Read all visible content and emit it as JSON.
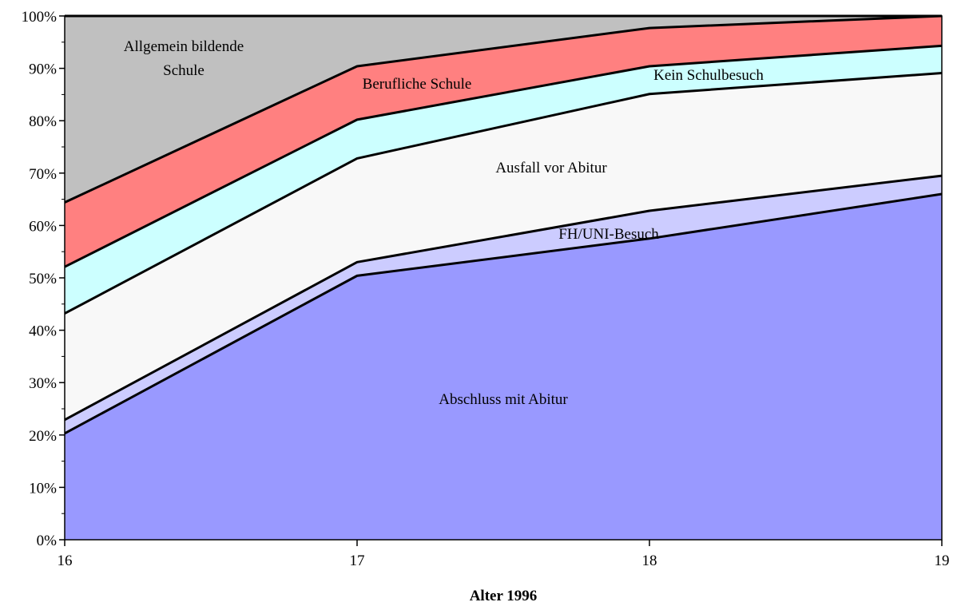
{
  "chart_data": {
    "type": "area",
    "stacked": true,
    "x": [
      16,
      17,
      18,
      19
    ],
    "xlabel": "Alter 1996",
    "ylabel": "",
    "ylim": [
      0,
      100
    ],
    "y_ticks": [
      "0%",
      "10%",
      "20%",
      "30%",
      "40%",
      "50%",
      "60%",
      "70%",
      "80%",
      "90%",
      "100%"
    ],
    "x_ticks": [
      "16",
      "17",
      "18",
      "19"
    ],
    "grid": false,
    "legend": "none",
    "series": [
      {
        "name": "Abschluss mit Abitur",
        "values": [
          20.3,
          50.4,
          57.5,
          66.0
        ],
        "color": "#9999ff"
      },
      {
        "name": "FH/UNI-Besuch",
        "values": [
          2.6,
          2.6,
          5.3,
          3.5
        ],
        "color": "#ccccff"
      },
      {
        "name": "Ausfall vor Abitur",
        "values": [
          20.3,
          19.8,
          22.3,
          19.6
        ],
        "color": "#f8f8f8"
      },
      {
        "name": "Kein Schulbesuch",
        "values": [
          8.9,
          7.4,
          5.3,
          5.2
        ],
        "color": "#ccffff"
      },
      {
        "name": "Berufliche Schule",
        "values": [
          12.3,
          10.2,
          7.3,
          5.7
        ],
        "color": "#ff8080"
      },
      {
        "name": "Allgemein bildende Schule",
        "values": [
          35.6,
          9.6,
          2.3,
          0.0
        ],
        "color": "#c0c0c0"
      }
    ],
    "annotations": [
      {
        "lines": [
          "Allgemein bildende",
          "Schule"
        ]
      },
      {
        "lines": [
          "Berufliche Schule"
        ]
      },
      {
        "lines": [
          "Kein Schulbesuch"
        ]
      },
      {
        "lines": [
          "Ausfall vor Abitur"
        ]
      },
      {
        "lines": [
          "FH/UNI-Besuch"
        ]
      },
      {
        "lines": [
          "Abschluss mit Abitur"
        ]
      }
    ]
  }
}
